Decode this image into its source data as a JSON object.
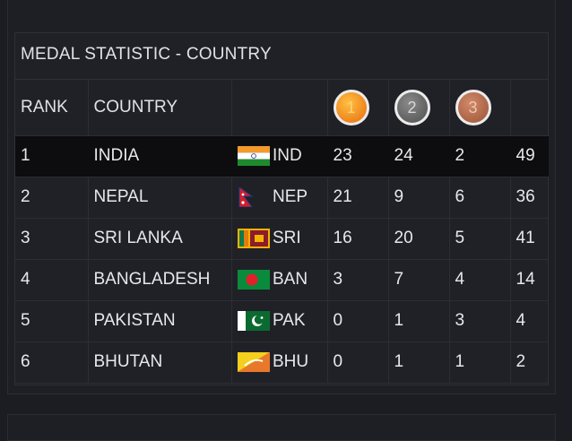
{
  "panel": {
    "title": "MEDAL STATISTIC - COUNTRY"
  },
  "header": {
    "rank": "RANK",
    "country": "COUNTRY",
    "medals": [
      {
        "label": "1",
        "icon": "gold-medal-icon"
      },
      {
        "label": "2",
        "icon": "silver-medal-icon"
      },
      {
        "label": "3",
        "icon": "bronze-medal-icon"
      }
    ]
  },
  "rows": [
    {
      "rank": "1",
      "country": "INDIA",
      "code": "IND",
      "gold": "23",
      "silver": "24",
      "bronze": "2",
      "total": "49",
      "flag": "india-flag-icon"
    },
    {
      "rank": "2",
      "country": "NEPAL",
      "code": "NEP",
      "gold": "21",
      "silver": "9",
      "bronze": "6",
      "total": "36",
      "flag": "nepal-flag-icon"
    },
    {
      "rank": "3",
      "country": "SRI LANKA",
      "code": "SRI",
      "gold": "16",
      "silver": "20",
      "bronze": "5",
      "total": "41",
      "flag": "sri-lanka-flag-icon"
    },
    {
      "rank": "4",
      "country": "BANGLADESH",
      "code": "BAN",
      "gold": "3",
      "silver": "7",
      "bronze": "4",
      "total": "14",
      "flag": "bangladesh-flag-icon"
    },
    {
      "rank": "5",
      "country": "PAKISTAN",
      "code": "PAK",
      "gold": "0",
      "silver": "1",
      "bronze": "3",
      "total": "4",
      "flag": "pakistan-flag-icon"
    },
    {
      "rank": "6",
      "country": "BHUTAN",
      "code": "BHU",
      "gold": "0",
      "silver": "1",
      "bronze": "1",
      "total": "2",
      "flag": "bhutan-flag-icon"
    }
  ]
}
